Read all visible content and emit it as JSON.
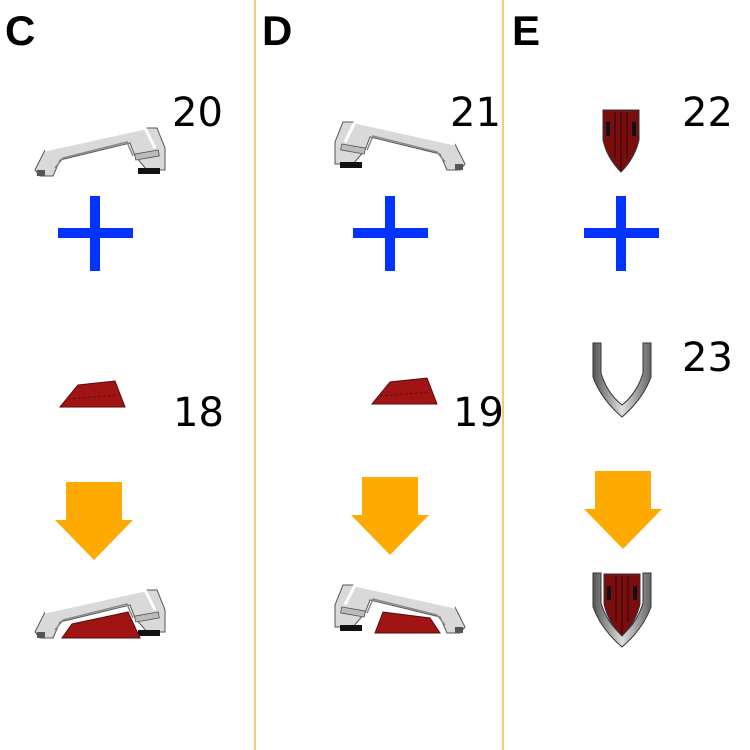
{
  "colors": {
    "plus": "#0033ff",
    "arrow": "#ffaa00",
    "divider": "#f5b84a",
    "part_red": "#8b1010",
    "part_grey": "#d8d8d8"
  },
  "columns": [
    {
      "label": "C",
      "part_top": "20",
      "part_bottom": "18"
    },
    {
      "label": "D",
      "part_top": "21",
      "part_bottom": "19"
    },
    {
      "label": "E",
      "part_top": "22",
      "part_bottom": "23"
    }
  ]
}
